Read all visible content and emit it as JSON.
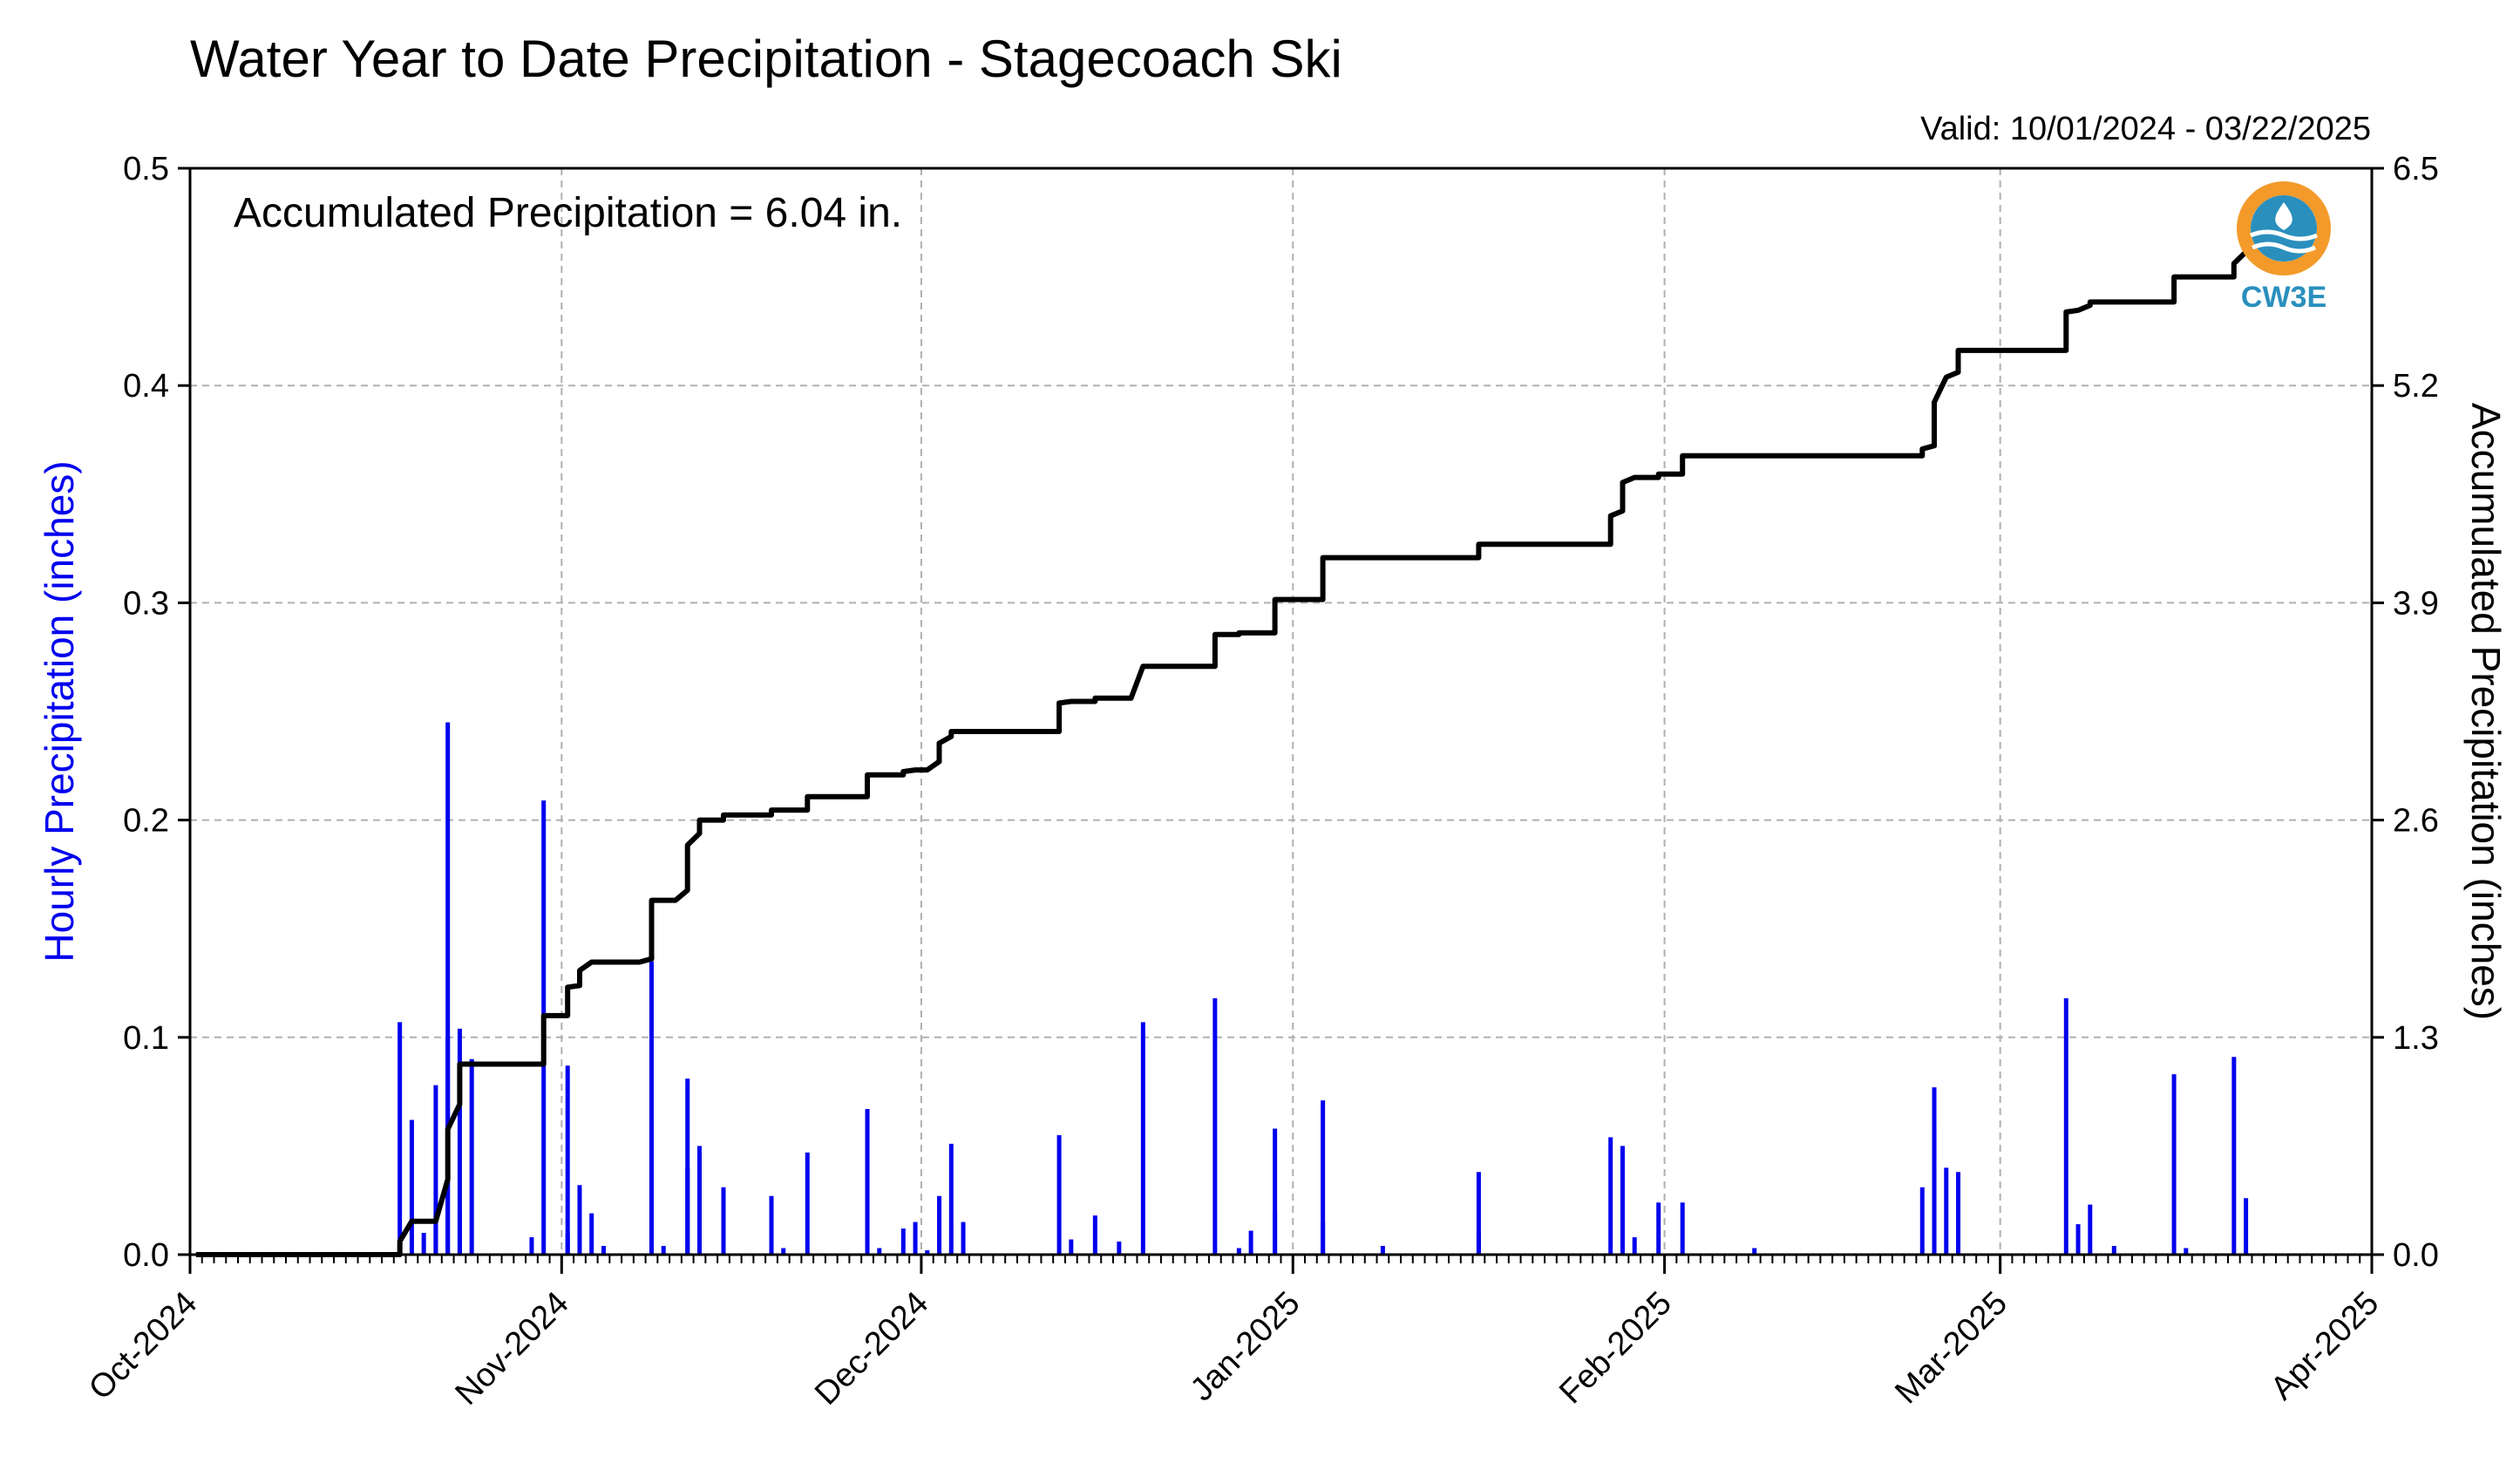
{
  "chart_data": {
    "type": "bar+line",
    "title": "Water Year to Date Precipitation - Stagecoach Ski",
    "valid_label": "Valid: 10/01/2024 - 03/22/2025",
    "annotation": "Accumulated Precipitation = 6.04 in.",
    "ylabel_left": "Hourly Precipitation (inches)",
    "ylabel_right": "Accumulated Precipitation (inches)",
    "left_ylim": [
      0,
      0.5
    ],
    "right_ylim": [
      0,
      6.5
    ],
    "left_ticks": [
      "0.0",
      "0.1",
      "0.2",
      "0.3",
      "0.4",
      "0.5"
    ],
    "right_ticks": [
      "0.0",
      "1.3",
      "2.6",
      "3.9",
      "5.2",
      "6.5"
    ],
    "x_start": "2024-10-01",
    "x_end": "2025-04-01",
    "x_tick_labels": [
      "Oct-2024",
      "Nov-2024",
      "Dec-2024",
      "Jan-2025",
      "Feb-2025",
      "Mar-2025",
      "Apr-2025"
    ],
    "x_tick_dates": [
      "2024-10-01",
      "2024-11-01",
      "2024-12-01",
      "2025-01-01",
      "2025-02-01",
      "2025-03-01",
      "2025-04-01"
    ],
    "grid": true,
    "colors": {
      "hourly": "#0000ee",
      "accumulated": "#000000"
    },
    "series": [
      {
        "name": "Hourly Precipitation",
        "type": "bar",
        "axis": "left",
        "points": [
          [
            "2024-10-18",
            0.004
          ],
          [
            "2024-10-18",
            0.107
          ],
          [
            "2024-10-19",
            0.062
          ],
          [
            "2024-10-20",
            0.01
          ],
          [
            "2024-10-21",
            0.078
          ],
          [
            "2024-10-21",
            0.02
          ],
          [
            "2024-10-22",
            0.245
          ],
          [
            "2024-10-22",
            0.1
          ],
          [
            "2024-10-23",
            0.02
          ],
          [
            "2024-10-23",
            0.104
          ],
          [
            "2024-10-24",
            0.09
          ],
          [
            "2024-10-29",
            0.008
          ],
          [
            "2024-10-30",
            0.209
          ],
          [
            "2024-11-01",
            0.087
          ],
          [
            "2024-11-01",
            0.01
          ],
          [
            "2024-11-02",
            0.032
          ],
          [
            "2024-11-03",
            0.019
          ],
          [
            "2024-11-04",
            0.004
          ],
          [
            "2024-11-08",
            0.135
          ],
          [
            "2024-11-08",
            0.06
          ],
          [
            "2024-11-09",
            0.004
          ],
          [
            "2024-11-11",
            0.081
          ],
          [
            "2024-11-11",
            0.04
          ],
          [
            "2024-11-12",
            0.05
          ],
          [
            "2024-11-14",
            0.031
          ],
          [
            "2024-11-18",
            0.027
          ],
          [
            "2024-11-19",
            0.003
          ],
          [
            "2024-11-21",
            0.047
          ],
          [
            "2024-11-26",
            0.067
          ],
          [
            "2024-11-27",
            0.003
          ],
          [
            "2024-11-29",
            0.012
          ],
          [
            "2024-11-30",
            0.015
          ],
          [
            "2024-12-01",
            0.002
          ],
          [
            "2024-12-02",
            0.027
          ],
          [
            "2024-12-03",
            0.051
          ],
          [
            "2024-12-04",
            0.015
          ],
          [
            "2024-12-12",
            0.055
          ],
          [
            "2024-12-13",
            0.007
          ],
          [
            "2024-12-15",
            0.018
          ],
          [
            "2024-12-17",
            0.006
          ],
          [
            "2024-12-19",
            0.107
          ],
          [
            "2024-12-25",
            0.118
          ],
          [
            "2024-12-27",
            0.003
          ],
          [
            "2024-12-28",
            0.011
          ],
          [
            "2024-12-30",
            0.058
          ],
          [
            "2024-12-30",
            0.02
          ],
          [
            "2025-01-03",
            0.071
          ],
          [
            "2025-01-03",
            0.015
          ],
          [
            "2025-01-08",
            0.004
          ],
          [
            "2025-01-16",
            0.038
          ],
          [
            "2025-01-16",
            0.01
          ],
          [
            "2025-01-27",
            0.054
          ],
          [
            "2025-01-28",
            0.05
          ],
          [
            "2025-01-29",
            0.008
          ],
          [
            "2025-01-31",
            0.024
          ],
          [
            "2025-02-02",
            0.024
          ],
          [
            "2025-02-08",
            0.003
          ],
          [
            "2025-02-22",
            0.031
          ],
          [
            "2025-02-23",
            0.077
          ],
          [
            "2025-02-23",
            0.06
          ],
          [
            "2025-02-24",
            0.04
          ],
          [
            "2025-02-25",
            0.038
          ],
          [
            "2025-03-06",
            0.118
          ],
          [
            "2025-03-07",
            0.014
          ],
          [
            "2025-03-08",
            0.023
          ],
          [
            "2025-03-10",
            0.004
          ],
          [
            "2025-03-15",
            0.083
          ],
          [
            "2025-03-16",
            0.003
          ],
          [
            "2025-03-20",
            0.091
          ],
          [
            "2025-03-21",
            0.026
          ]
        ]
      },
      {
        "name": "Accumulated Precipitation",
        "type": "line",
        "axis": "right",
        "points": [
          [
            "2024-10-01",
            0.0
          ],
          [
            "2024-10-18",
            0.0
          ],
          [
            "2024-10-18",
            0.08
          ],
          [
            "2024-10-19",
            0.2
          ],
          [
            "2024-10-21",
            0.2
          ],
          [
            "2024-10-22",
            0.45
          ],
          [
            "2024-10-22",
            0.75
          ],
          [
            "2024-10-23",
            0.9
          ],
          [
            "2024-10-23",
            1.14
          ],
          [
            "2024-10-30",
            1.14
          ],
          [
            "2024-10-30",
            1.43
          ],
          [
            "2024-11-01",
            1.43
          ],
          [
            "2024-11-01",
            1.6
          ],
          [
            "2024-11-02",
            1.61
          ],
          [
            "2024-11-02",
            1.7
          ],
          [
            "2024-11-03",
            1.75
          ],
          [
            "2024-11-07",
            1.75
          ],
          [
            "2024-11-08",
            1.77
          ],
          [
            "2024-11-08",
            2.12
          ],
          [
            "2024-11-10",
            2.12
          ],
          [
            "2024-11-11",
            2.18
          ],
          [
            "2024-11-11",
            2.45
          ],
          [
            "2024-11-12",
            2.52
          ],
          [
            "2024-11-12",
            2.6
          ],
          [
            "2024-11-14",
            2.6
          ],
          [
            "2024-11-14",
            2.63
          ],
          [
            "2024-11-18",
            2.63
          ],
          [
            "2024-11-18",
            2.66
          ],
          [
            "2024-11-21",
            2.66
          ],
          [
            "2024-11-21",
            2.74
          ],
          [
            "2024-11-26",
            2.74
          ],
          [
            "2024-11-26",
            2.87
          ],
          [
            "2024-11-29",
            2.87
          ],
          [
            "2024-11-29",
            2.89
          ],
          [
            "2024-11-30",
            2.9
          ],
          [
            "2024-12-01",
            2.9
          ],
          [
            "2024-12-02",
            2.95
          ],
          [
            "2024-12-02",
            3.06
          ],
          [
            "2024-12-03",
            3.1
          ],
          [
            "2024-12-03",
            3.13
          ],
          [
            "2024-12-12",
            3.13
          ],
          [
            "2024-12-12",
            3.3
          ],
          [
            "2024-12-13",
            3.31
          ],
          [
            "2024-12-15",
            3.31
          ],
          [
            "2024-12-15",
            3.33
          ],
          [
            "2024-12-18",
            3.33
          ],
          [
            "2024-12-19",
            3.52
          ],
          [
            "2024-12-25",
            3.52
          ],
          [
            "2024-12-25",
            3.71
          ],
          [
            "2024-12-27",
            3.71
          ],
          [
            "2024-12-27",
            3.72
          ],
          [
            "2024-12-30",
            3.72
          ],
          [
            "2024-12-30",
            3.92
          ],
          [
            "2025-01-03",
            3.92
          ],
          [
            "2025-01-03",
            4.17
          ],
          [
            "2025-01-16",
            4.17
          ],
          [
            "2025-01-16",
            4.25
          ],
          [
            "2025-01-27",
            4.25
          ],
          [
            "2025-01-27",
            4.42
          ],
          [
            "2025-01-28",
            4.45
          ],
          [
            "2025-01-28",
            4.62
          ],
          [
            "2025-01-29",
            4.65
          ],
          [
            "2025-01-31",
            4.65
          ],
          [
            "2025-01-31",
            4.67
          ],
          [
            "2025-02-02",
            4.67
          ],
          [
            "2025-02-02",
            4.78
          ],
          [
            "2025-02-22",
            4.78
          ],
          [
            "2025-02-22",
            4.82
          ],
          [
            "2025-02-23",
            4.84
          ],
          [
            "2025-02-23",
            5.1
          ],
          [
            "2025-02-24",
            5.25
          ],
          [
            "2025-02-25",
            5.28
          ],
          [
            "2025-02-25",
            5.41
          ],
          [
            "2025-03-06",
            5.41
          ],
          [
            "2025-03-06",
            5.64
          ],
          [
            "2025-03-07",
            5.65
          ],
          [
            "2025-03-08",
            5.68
          ],
          [
            "2025-03-08",
            5.7
          ],
          [
            "2025-03-15",
            5.7
          ],
          [
            "2025-03-15",
            5.85
          ],
          [
            "2025-03-20",
            5.85
          ],
          [
            "2025-03-20",
            5.93
          ],
          [
            "2025-03-21",
            6.0
          ],
          [
            "2025-03-21",
            6.04
          ]
        ]
      }
    ]
  },
  "logo": {
    "text": "CW3E",
    "ring_color": "#f39a2b",
    "water_color": "#2a8fbd"
  }
}
